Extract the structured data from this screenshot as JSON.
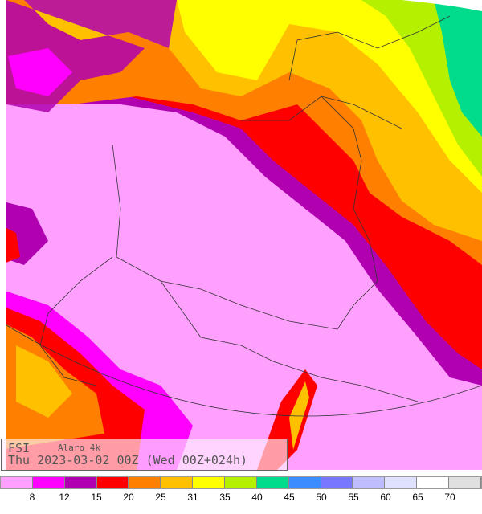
{
  "title": {
    "variable": "FSI",
    "model": "Alaro 4k",
    "valid": "Thu 2023-03-02 00Z (Wed 00Z+024h)"
  },
  "legend": {
    "colors": [
      "#ffa0ff",
      "#ff00ff",
      "#b000b0",
      "#ff0000",
      "#ff8000",
      "#ffc000",
      "#ffff00",
      "#b4f000",
      "#00dc8c",
      "#3c8cff",
      "#7878ff",
      "#bebeff",
      "#e0e0ff",
      "#ffffff",
      "#e0e0e0"
    ],
    "ticks": [
      "8",
      "12",
      "15",
      "20",
      "25",
      "31",
      "35",
      "40",
      "45",
      "50",
      "55",
      "60",
      "65",
      "70"
    ]
  }
}
